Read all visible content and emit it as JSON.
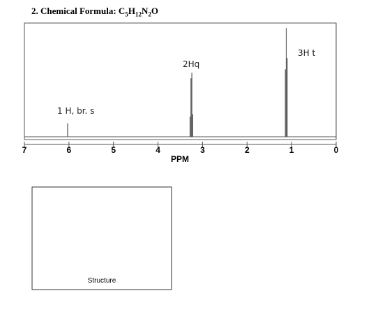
{
  "header": {
    "number": "2.",
    "label": "Chemical Formula:",
    "formula": [
      {
        "el": "C",
        "sub": "5"
      },
      {
        "el": "H",
        "sub": "12"
      },
      {
        "el": "N",
        "sub": "2"
      },
      {
        "el": "O"
      }
    ]
  },
  "chart_data": {
    "type": "stick",
    "x_label": "PPM",
    "x": [
      6.03,
      3.28,
      3.26,
      3.24,
      3.22,
      1.14,
      1.12,
      1.1
    ],
    "values": [
      12,
      18,
      52,
      57,
      20,
      60,
      97,
      70
    ],
    "xlim": [
      7,
      0
    ],
    "xticks": [
      7,
      6,
      5,
      4,
      3,
      2,
      1,
      0
    ],
    "ylim": [
      0,
      100
    ],
    "color": "#555555",
    "annotations": [
      "1 H, br. s",
      "2Hq",
      "3H t"
    ]
  },
  "structure_label": "Structure"
}
